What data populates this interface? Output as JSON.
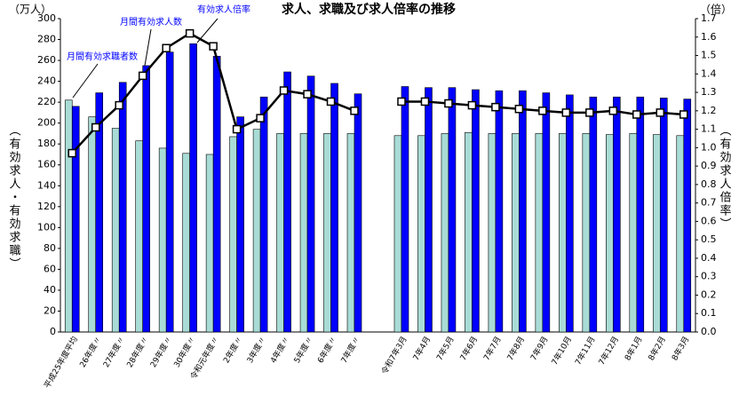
{
  "chart_data": {
    "type": "bar",
    "title": "求人、求職及び求人倍率の推移",
    "y_unit": "（万人）",
    "y2_unit": "（倍）",
    "ylabel": "（有効求人・有効求職）",
    "y2label": "（有効求人倍率）",
    "annotations": [
      "月間有効求職者数",
      "月間有効求人数",
      "有効求人倍率"
    ],
    "categories": [
      "平成25年度平均",
      "26年度〃",
      "27年度〃",
      "28年度〃",
      "29年度〃",
      "30年度〃",
      "令和元年度〃",
      "2年度〃",
      "3年度〃",
      "4年度〃",
      "5年度〃",
      "6年度〃",
      "7年度〃",
      null,
      "令和7年3月",
      "7年4月",
      "7年5月",
      "7年6月",
      "7年7月",
      "7年8月",
      "7年9月",
      "7年10月",
      "7年11月",
      "7年12月",
      "8年1月",
      "8年2月",
      "8年3月"
    ],
    "series": [
      {
        "name": "月間有効求職者数",
        "type": "bar",
        "color": "#a9dcd6",
        "values": [
          222,
          206,
          195,
          183,
          176,
          171,
          170,
          187,
          194,
          190,
          190,
          190,
          190,
          null,
          188,
          188,
          190,
          191,
          190,
          190,
          190,
          190,
          190,
          189,
          190,
          189,
          188
        ]
      },
      {
        "name": "月間有効求人数",
        "type": "bar",
        "color": "#0000ff",
        "values": [
          216,
          229,
          239,
          255,
          268,
          276,
          264,
          206,
          225,
          249,
          245,
          238,
          228,
          null,
          235,
          234,
          234,
          232,
          231,
          231,
          229,
          227,
          225,
          225,
          225,
          224,
          223
        ]
      },
      {
        "name": "有効求人倍率",
        "type": "line",
        "axis": "y2",
        "color": "#000000",
        "values": [
          0.97,
          1.11,
          1.23,
          1.39,
          1.54,
          1.62,
          1.55,
          1.1,
          1.16,
          1.31,
          1.29,
          1.25,
          1.2,
          null,
          1.25,
          1.25,
          1.24,
          1.23,
          1.22,
          1.21,
          1.2,
          1.19,
          1.19,
          1.2,
          1.18,
          1.19,
          1.18
        ]
      }
    ],
    "ylim": [
      0,
      300
    ],
    "yticks": [
      0,
      20,
      40,
      60,
      80,
      100,
      120,
      140,
      160,
      180,
      200,
      220,
      240,
      260,
      280,
      300
    ],
    "y2lim": [
      0,
      1.7
    ],
    "y2ticks": [
      {
        "value": 0,
        "label": "0.0"
      },
      0.1,
      0.2,
      0.3,
      0.4,
      0.5,
      0.6,
      0.7,
      0.8,
      0.9,
      {
        "value": 1,
        "label": "1.0"
      },
      1.1,
      1.2,
      1.3,
      1.4,
      1.5,
      1.6,
      1.7
    ]
  }
}
